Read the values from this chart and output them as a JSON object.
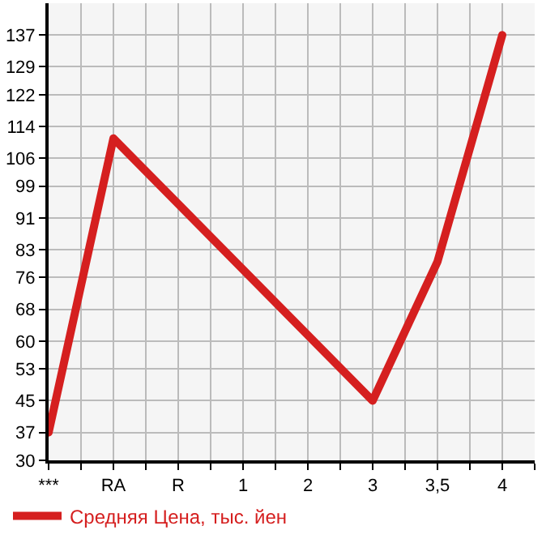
{
  "chart_data": {
    "type": "line",
    "categories": [
      "***",
      "RA",
      "R",
      "1",
      "2",
      "3",
      "3,5",
      "4"
    ],
    "series": [
      {
        "name": "Средняя Цена, тыс. йен",
        "color": "#d51f1f",
        "values": [
          37,
          111,
          null,
          null,
          null,
          45,
          80,
          137
        ]
      }
    ],
    "ylim": [
      30,
      145
    ],
    "yticks": [
      30,
      37,
      45,
      53,
      60,
      68,
      76,
      83,
      91,
      99,
      106,
      114,
      122,
      129,
      137
    ],
    "grid": true,
    "legend": "bottom left",
    "marker": "none",
    "line_style": "solid"
  }
}
